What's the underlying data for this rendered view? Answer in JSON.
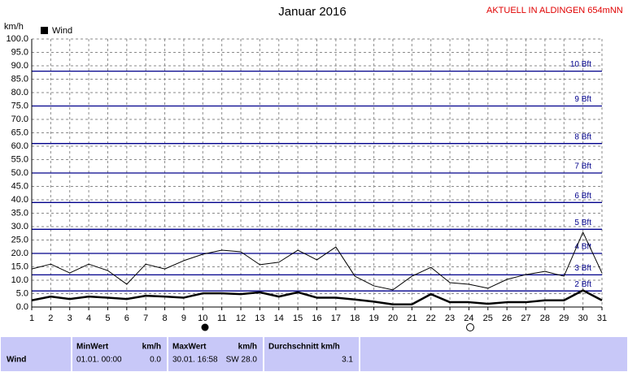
{
  "chart_data": {
    "type": "line",
    "title": "Januar 2016",
    "corner_note": "AKTUELL IN ALDINGEN 654mNN",
    "y_label": "km/h",
    "x": [
      1,
      2,
      3,
      4,
      5,
      6,
      7,
      8,
      9,
      10,
      11,
      12,
      13,
      14,
      15,
      16,
      17,
      18,
      19,
      20,
      21,
      22,
      23,
      24,
      25,
      26,
      27,
      28,
      29,
      30,
      31
    ],
    "xlim": [
      1,
      31
    ],
    "xticks": [
      1,
      2,
      3,
      4,
      5,
      6,
      7,
      8,
      9,
      10,
      11,
      12,
      13,
      14,
      15,
      16,
      17,
      18,
      19,
      20,
      21,
      22,
      23,
      24,
      25,
      26,
      27,
      28,
      29,
      30,
      31
    ],
    "ylim": [
      0,
      100
    ],
    "yticks": [
      {
        "value": 0,
        "label": "0.0"
      },
      {
        "value": 5,
        "label": "5.0"
      },
      {
        "value": 10,
        "label": "10.0"
      },
      {
        "value": 15,
        "label": "15.0"
      },
      {
        "value": 20,
        "label": "20.0"
      },
      {
        "value": 25,
        "label": "25.0"
      },
      {
        "value": 30,
        "label": "30.0"
      },
      {
        "value": 35,
        "label": "35.0"
      },
      {
        "value": 40,
        "label": "40.0"
      },
      {
        "value": 45,
        "label": "45.0"
      },
      {
        "value": 50,
        "label": "50.0"
      },
      {
        "value": 55,
        "label": "55.0"
      },
      {
        "value": 60,
        "label": "60.0"
      },
      {
        "value": 65,
        "label": "65.0"
      },
      {
        "value": 70,
        "label": "70.0"
      },
      {
        "value": 75,
        "label": "75.0"
      },
      {
        "value": 80,
        "label": "80.0"
      },
      {
        "value": 85,
        "label": "85.0"
      },
      {
        "value": 90,
        "label": "90.0"
      },
      {
        "value": 95,
        "label": "95.0"
      },
      {
        "value": 100,
        "label": "100.0"
      }
    ],
    "grid": true,
    "beaufort": [
      {
        "value": 6,
        "label": "2 Bft"
      },
      {
        "value": 12,
        "label": "3 Bft"
      },
      {
        "value": 20,
        "label": "4 Bft"
      },
      {
        "value": 29,
        "label": "5 Bft"
      },
      {
        "value": 39,
        "label": "6 Bft"
      },
      {
        "value": 50,
        "label": "7 Bft"
      },
      {
        "value": 61,
        "label": "8 Bft"
      },
      {
        "value": 75,
        "label": "9 Bft"
      },
      {
        "value": 88,
        "label": "10 Bft"
      }
    ],
    "beaufort_color": "#00008b",
    "series": [
      {
        "name": "Wind",
        "color": "#000000",
        "width": 2.5,
        "values": [
          2.5,
          3.9,
          3.0,
          3.9,
          3.5,
          3.0,
          4.2,
          3.9,
          3.5,
          5.1,
          5.1,
          4.8,
          5.5,
          3.9,
          5.5,
          3.5,
          3.5,
          2.8,
          2.0,
          1.0,
          1.0,
          4.8,
          1.8,
          1.8,
          1.2,
          1.8,
          1.8,
          2.5,
          2.5,
          6.2,
          2.5
        ]
      },
      {
        "color": "#000000",
        "width": 1,
        "values": [
          14.2,
          16,
          12.7,
          16,
          13.6,
          8.5,
          16,
          14.2,
          17.3,
          19.7,
          21.2,
          20.6,
          15.8,
          16.7,
          21.2,
          17.6,
          22.4,
          11.5,
          7.9,
          6.4,
          11.5,
          14.8,
          9.1,
          8.5,
          7,
          10.3,
          12.1,
          13.3,
          11.5,
          27.9,
          12.7
        ]
      }
    ]
  },
  "stats": {
    "row_label": "Wind",
    "min": {
      "header": "MinWert",
      "unit": "km/h",
      "time": "01.01.  00:00",
      "value": "0.0"
    },
    "max": {
      "header": "MaxWert",
      "unit": "km/h",
      "time": "30.01.  16:58",
      "value": "SW 28.0"
    },
    "avg": {
      "header": "Durchschnitt km/h",
      "value": "3.1"
    }
  }
}
